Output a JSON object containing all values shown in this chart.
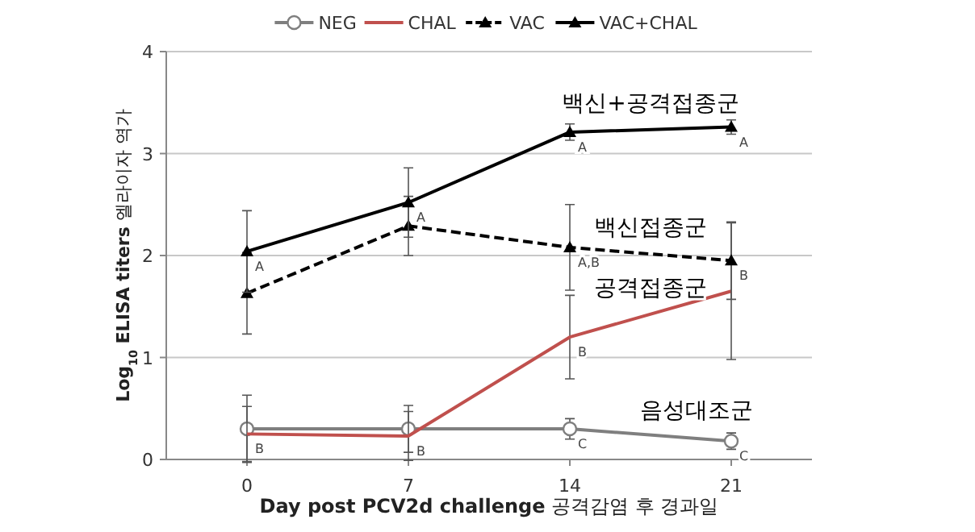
{
  "chart_data": {
    "type": "line",
    "xlabel": "**Day post PCV2d challenge** 공격감염 후 경과일",
    "ylabel": "**Log$_{10}$ ELISA titers** 엘라이자 역가",
    "x": [
      0,
      7,
      14,
      21
    ],
    "xlim": [
      -3.5,
      24.5
    ],
    "xticks": [
      0,
      7,
      14,
      21
    ],
    "ylim": [
      0,
      4
    ],
    "yticks": [
      0,
      1,
      2,
      3,
      4
    ],
    "grid": "y",
    "legend": "top",
    "series": [
      {
        "name": "NEG",
        "color": "#7f7f7f",
        "marker": "circle",
        "line_style": "solid",
        "values": [
          0.3,
          0.3,
          0.3,
          0.18
        ],
        "errors": [
          0.33,
          0.23,
          0.1,
          0.08
        ]
      },
      {
        "name": "CHAL",
        "color": "#c0504d",
        "marker": "none",
        "line_style": "solid",
        "values": [
          0.25,
          0.23,
          1.2,
          1.65
        ],
        "errors": [
          0.27,
          0.24,
          0.41,
          0.67
        ]
      },
      {
        "name": "VAC",
        "color": "#000000",
        "marker": "triangle",
        "line_style": "dashed",
        "values": [
          1.63,
          2.29,
          2.08,
          1.95
        ],
        "errors": [
          0.4,
          0.29,
          0.42,
          0.38
        ]
      },
      {
        "name": "VAC+CHAL",
        "color": "#000000",
        "marker": "triangle",
        "line_style": "solid",
        "values": [
          2.04,
          2.52,
          3.21,
          3.26
        ],
        "errors": [
          0.4,
          0.34,
          0.08,
          0.07
        ]
      }
    ],
    "annotations": [
      {
        "text": "A",
        "x": 0,
        "y": 2.04
      },
      {
        "text": "A",
        "x": 7,
        "y": 2.52
      },
      {
        "text": "A",
        "x": 14,
        "y": 3.21
      },
      {
        "text": "A",
        "x": 21,
        "y": 3.26
      },
      {
        "text": "A,B",
        "x": 14,
        "y": 2.08
      },
      {
        "text": "B",
        "x": 21,
        "y": 1.95
      },
      {
        "text": "B",
        "x": 14,
        "y": 1.2
      },
      {
        "text": "B",
        "x": 0,
        "y": 0.25
      },
      {
        "text": "B",
        "x": 7,
        "y": 0.23
      },
      {
        "text": "C",
        "x": 14,
        "y": 0.3
      },
      {
        "text": "C",
        "x": 21,
        "y": 0.18
      },
      {
        "text": "백신+공격접종군",
        "x": 17.5,
        "y": 3.235
      },
      {
        "text": "백신접종군",
        "x": 17.5,
        "y": 2.015
      },
      {
        "text": "공격접종군",
        "x": 17.5,
        "y": 1.425
      },
      {
        "text": "음성대조군",
        "x": 19.5,
        "y": 0.22
      }
    ]
  }
}
